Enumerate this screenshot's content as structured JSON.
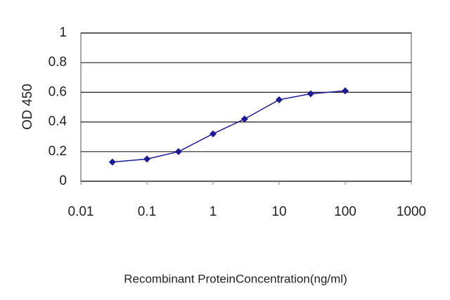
{
  "chart_data": {
    "type": "line",
    "x_label": "Recombinant ProteinConcentration(ng/ml)",
    "y_label": "OD 450",
    "x": [
      0.03,
      0.1,
      0.3,
      1,
      3,
      10,
      30,
      100
    ],
    "values": [
      0.13,
      0.15,
      0.2,
      0.32,
      0.42,
      0.55,
      0.59,
      0.61
    ],
    "color": "#1a1a99",
    "xscale": "log",
    "xlim": [
      0.01,
      1000
    ],
    "xticks": [
      0.01,
      0.1,
      1,
      10,
      100,
      1000
    ],
    "ylim": [
      0,
      1
    ],
    "yticks": [
      0,
      0.2,
      0.4,
      0.6,
      0.8,
      1
    ],
    "grid": true
  }
}
